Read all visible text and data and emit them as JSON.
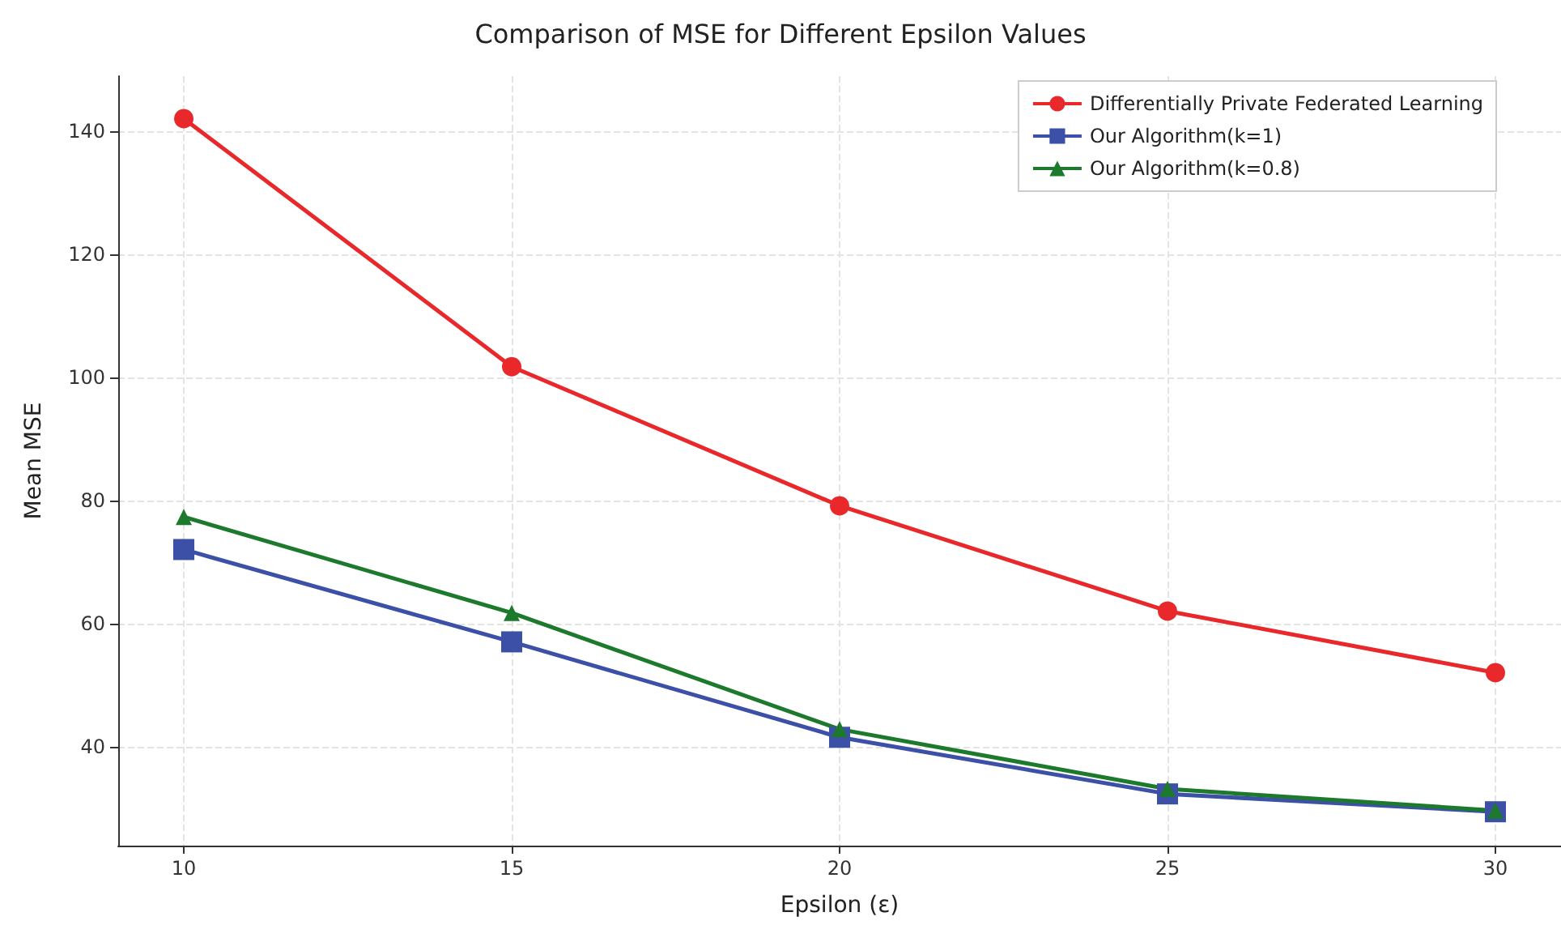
{
  "chart_data": {
    "type": "line",
    "title": "Comparison of MSE for Different Epsilon Values",
    "xlabel": "Epsilon (ε)",
    "ylabel": "Mean MSE",
    "x": [
      10,
      15,
      20,
      25,
      30
    ],
    "series": [
      {
        "name": "Differentially Private Federated Learning",
        "color": "#e8282a",
        "marker": "circle",
        "values": [
          142.1,
          101.8,
          79.2,
          62.1,
          52.1
        ]
      },
      {
        "name": "Our Algorithm(k=1)",
        "color": "#3b50a6",
        "marker": "square",
        "values": [
          72.1,
          57.1,
          41.6,
          32.4,
          29.5
        ]
      },
      {
        "name": "Our Algorithm(k=0.8)",
        "color": "#1d7a2d",
        "marker": "triangle",
        "values": [
          77.4,
          61.8,
          42.9,
          33.2,
          29.7
        ]
      }
    ],
    "xlim": [
      9,
      31
    ],
    "xticks": [
      10,
      15,
      20,
      25,
      30
    ],
    "ylim": [
      24,
      149
    ],
    "yticks": [
      40,
      60,
      80,
      100,
      120,
      140
    ],
    "grid": true,
    "legend": "top right",
    "line_style": "solid"
  }
}
